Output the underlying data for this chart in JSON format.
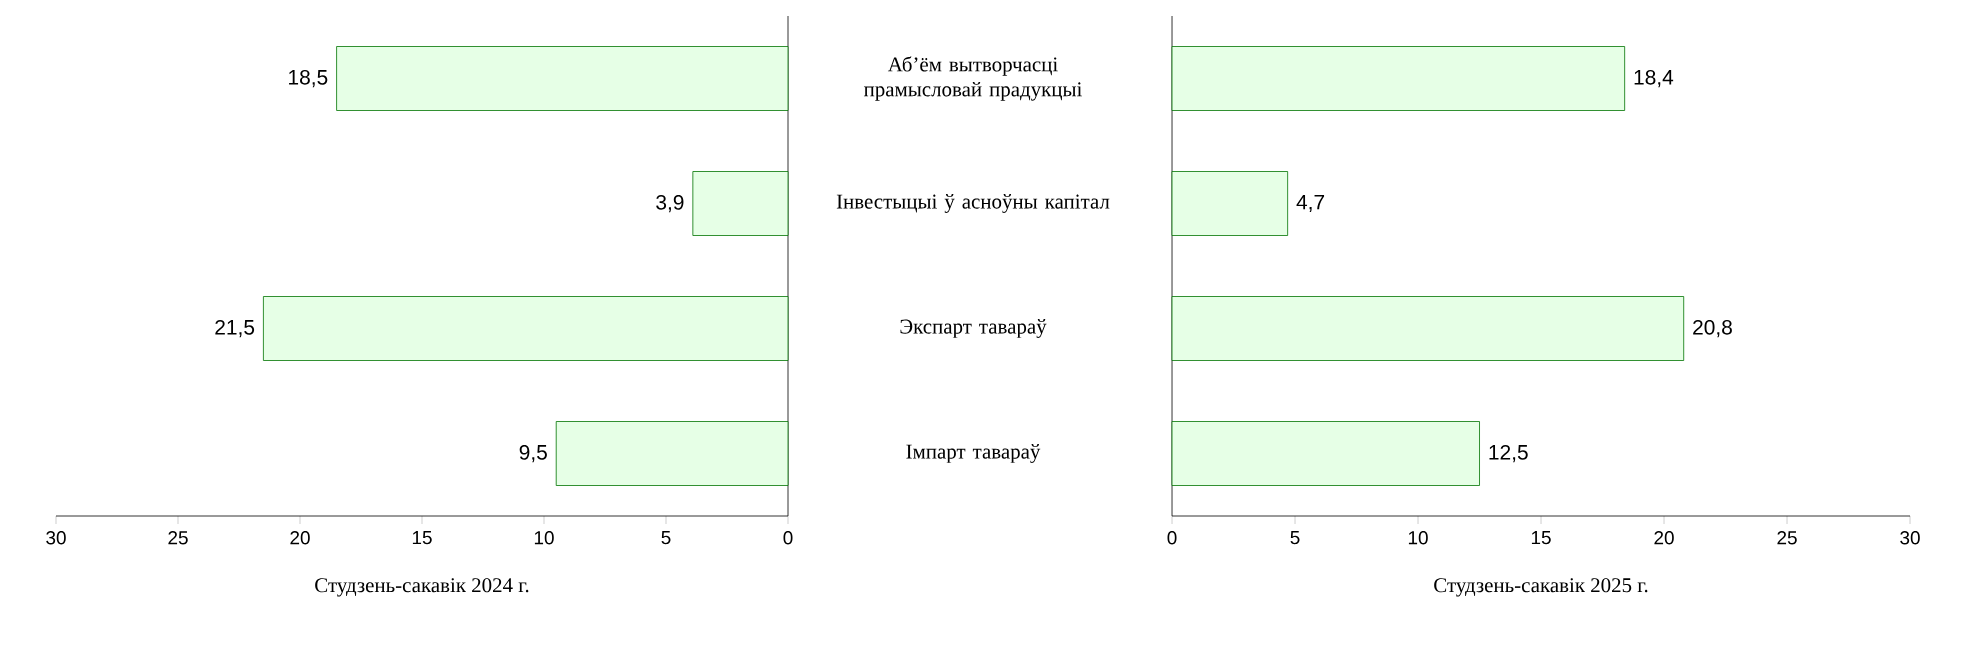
{
  "chart_data": [
    {
      "type": "bar",
      "orientation": "horizontal",
      "categories": [
        null,
        null,
        null,
        null
      ],
      "values": [
        18.5,
        3.9,
        21.5,
        9.5
      ],
      "value_labels": [
        "18,5",
        "3,9",
        "21,5",
        "9,5"
      ],
      "color": "#e6ffe6",
      "xlim": [
        30,
        0
      ],
      "xticks": [
        30,
        25,
        20,
        15,
        10,
        5,
        0
      ],
      "xlabel": "Студзень-сакавік 2024 г.",
      "tick_labels": "x"
    },
    {
      "type": "bar",
      "orientation": "horizontal",
      "categories": [
        "Аб’ём вытворчасці прамысловай прадукцыі",
        "Інвестыцыі ў асноўны капітал",
        "Экспарт тавараў",
        "Імпарт тавараў"
      ],
      "values": [
        18.4,
        4.7,
        20.8,
        12.5
      ],
      "value_labels": [
        "18,4",
        "4,7",
        "20,8",
        "12,5"
      ],
      "color": "#e6ffe6",
      "xlim": [
        0,
        30
      ],
      "xticks": [
        0,
        5,
        10,
        15,
        20,
        25,
        30
      ],
      "xlabel": "Студзень-сакавік 2025 г."
    }
  ]
}
